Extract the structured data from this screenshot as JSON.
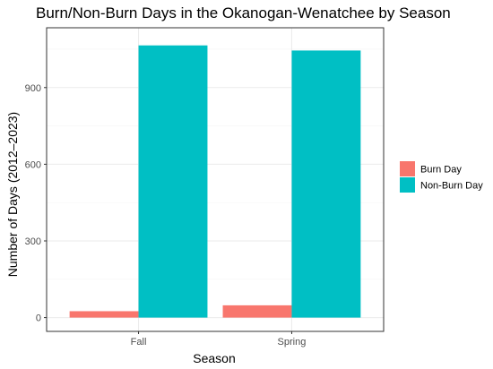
{
  "chart_data": {
    "type": "bar",
    "title": "Burn/Non-Burn Days in the Okanogan-Wenatchee by Season",
    "xlabel": "Season",
    "ylabel": "Number of Days (2012–2023)",
    "categories": [
      "Fall",
      "Spring"
    ],
    "series": [
      {
        "name": "Burn Day",
        "color": "#F8766D",
        "values": [
          25,
          48
        ]
      },
      {
        "name": "Non-Burn Day",
        "color": "#00BFC4",
        "values": [
          1065,
          1045
        ]
      }
    ],
    "ylim": [
      -54,
      1134
    ],
    "yticks": [
      0,
      300,
      600,
      900
    ],
    "grid": true,
    "legend": "right"
  }
}
